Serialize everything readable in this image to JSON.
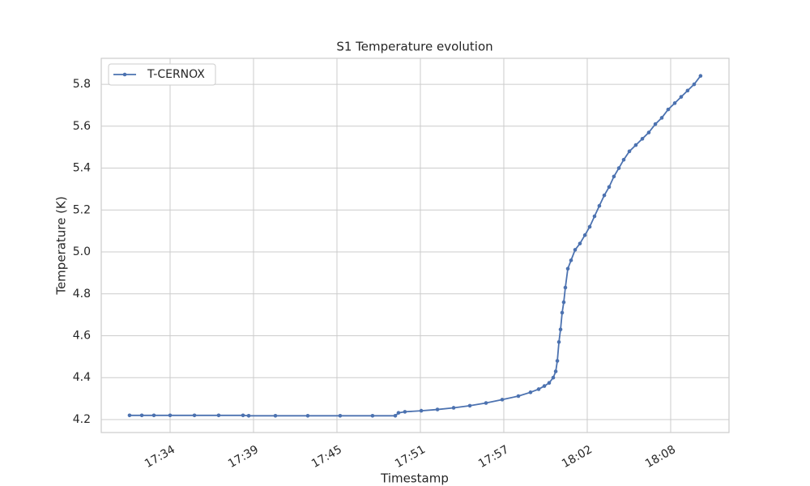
{
  "chart_data": {
    "type": "line",
    "title": "S1 Temperature evolution",
    "x_label": "Timestamp",
    "y_label": "Temperature (K)",
    "grid": true,
    "legend": "upper left",
    "xlim": [
      1049.48,
      1092.52
    ],
    "ylim": [
      4.138,
      5.924
    ],
    "xticks": [
      {
        "value": 1054.2,
        "label": "17:34"
      },
      {
        "value": 1059.92,
        "label": "17:39"
      },
      {
        "value": 1065.64,
        "label": "17:45"
      },
      {
        "value": 1071.36,
        "label": "17:51"
      },
      {
        "value": 1077.08,
        "label": "17:57"
      },
      {
        "value": 1082.8,
        "label": "18:02"
      },
      {
        "value": 1088.52,
        "label": "18:08"
      }
    ],
    "yticks": [
      {
        "value": 4.2,
        "label": "4.2"
      },
      {
        "value": 4.4,
        "label": "4.4"
      },
      {
        "value": 4.6,
        "label": "4.6"
      },
      {
        "value": 4.8,
        "label": "4.8"
      },
      {
        "value": 5.0,
        "label": "5.0"
      },
      {
        "value": 5.2,
        "label": "5.2"
      },
      {
        "value": 5.4,
        "label": "5.4"
      },
      {
        "value": 5.6,
        "label": "5.6"
      },
      {
        "value": 5.8,
        "label": "5.8"
      }
    ],
    "x": [
      1051.42,
      1052.26,
      1053.09,
      1054.2,
      1055.87,
      1057.53,
      1059.2,
      1059.59,
      1061.42,
      1063.64,
      1065.86,
      1068.08,
      1069.64,
      1069.86,
      1070.3,
      1071.42,
      1072.53,
      1073.64,
      1074.75,
      1075.86,
      1076.97,
      1078.08,
      1078.91,
      1079.47,
      1079.86,
      1080.19,
      1080.47,
      1080.64,
      1080.75,
      1080.86,
      1080.97,
      1081.08,
      1081.19,
      1081.3,
      1081.47,
      1081.69,
      1081.97,
      1082.3,
      1082.64,
      1082.97,
      1083.3,
      1083.63,
      1083.97,
      1084.3,
      1084.63,
      1084.97,
      1085.3,
      1085.69,
      1086.13,
      1086.58,
      1087.02,
      1087.47,
      1087.91,
      1088.35,
      1088.8,
      1089.24,
      1089.68,
      1090.13,
      1090.57
    ],
    "series": [
      {
        "name": "T-CERNOX",
        "color": "#4c72b0",
        "values": [
          4.22,
          4.22,
          4.22,
          4.22,
          4.22,
          4.22,
          4.22,
          4.218,
          4.218,
          4.218,
          4.218,
          4.218,
          4.218,
          4.232,
          4.237,
          4.242,
          4.248,
          4.256,
          4.266,
          4.279,
          4.295,
          4.312,
          4.33,
          4.345,
          4.36,
          4.375,
          4.4,
          4.43,
          4.48,
          4.57,
          4.63,
          4.71,
          4.76,
          4.83,
          4.92,
          4.96,
          5.01,
          5.04,
          5.08,
          5.12,
          5.17,
          5.22,
          5.27,
          5.31,
          5.36,
          5.4,
          5.44,
          5.48,
          5.51,
          5.54,
          5.57,
          5.61,
          5.64,
          5.68,
          5.71,
          5.74,
          5.77,
          5.8,
          5.84
        ]
      }
    ]
  }
}
